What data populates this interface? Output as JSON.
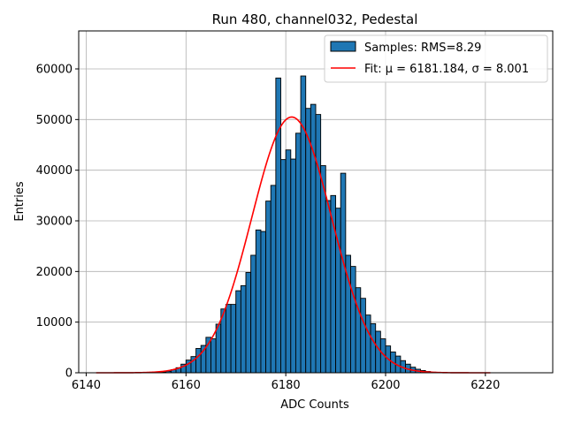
{
  "chart_data": {
    "type": "bar",
    "title": "Run 480, channel032, Pedestal",
    "xlabel": "ADC Counts",
    "ylabel": "Entries",
    "xlim": [
      6138.5,
      6233.5
    ],
    "ylim": [
      0,
      67500
    ],
    "xticks": [
      6140,
      6160,
      6180,
      6200,
      6220
    ],
    "yticks": [
      0,
      10000,
      20000,
      30000,
      40000,
      50000,
      60000
    ],
    "grid": true,
    "legend_position": "top-right",
    "bar_color": "#1f77b4",
    "fit_color": "#ff0000",
    "histogram": {
      "name": "Samples: RMS=8.29",
      "bins": [
        6155,
        6156,
        6157,
        6158,
        6159,
        6160,
        6161,
        6162,
        6163,
        6164,
        6165,
        6166,
        6167,
        6168,
        6169,
        6170,
        6171,
        6172,
        6173,
        6174,
        6175,
        6176,
        6177,
        6178,
        6179,
        6180,
        6181,
        6182,
        6183,
        6184,
        6185,
        6186,
        6187,
        6188,
        6189,
        6190,
        6191,
        6192,
        6193,
        6194,
        6195,
        6196,
        6197,
        6198,
        6199,
        6200,
        6201,
        6202,
        6203,
        6204,
        6205,
        6206,
        6207,
        6208,
        6209
      ],
      "counts": [
        150,
        300,
        600,
        1000,
        1700,
        2500,
        3200,
        4800,
        5400,
        7000,
        6700,
        9600,
        12600,
        13500,
        13500,
        16200,
        17200,
        19800,
        23200,
        28200,
        27900,
        33900,
        37000,
        58200,
        42100,
        44000,
        42200,
        47300,
        58600,
        52200,
        53000,
        51000,
        40900,
        34000,
        35000,
        32500,
        39400,
        23200,
        21000,
        16800,
        14700,
        11400,
        9700,
        8200,
        6700,
        5300,
        4100,
        3300,
        2400,
        1700,
        1100,
        700,
        450,
        250,
        120
      ]
    },
    "fit": {
      "name": "Fit: μ = 6181.184, σ = 8.001",
      "mu": 6181.184,
      "sigma": 8.001,
      "amplitude": 50500,
      "x_range": [
        6142,
        6221
      ]
    }
  }
}
